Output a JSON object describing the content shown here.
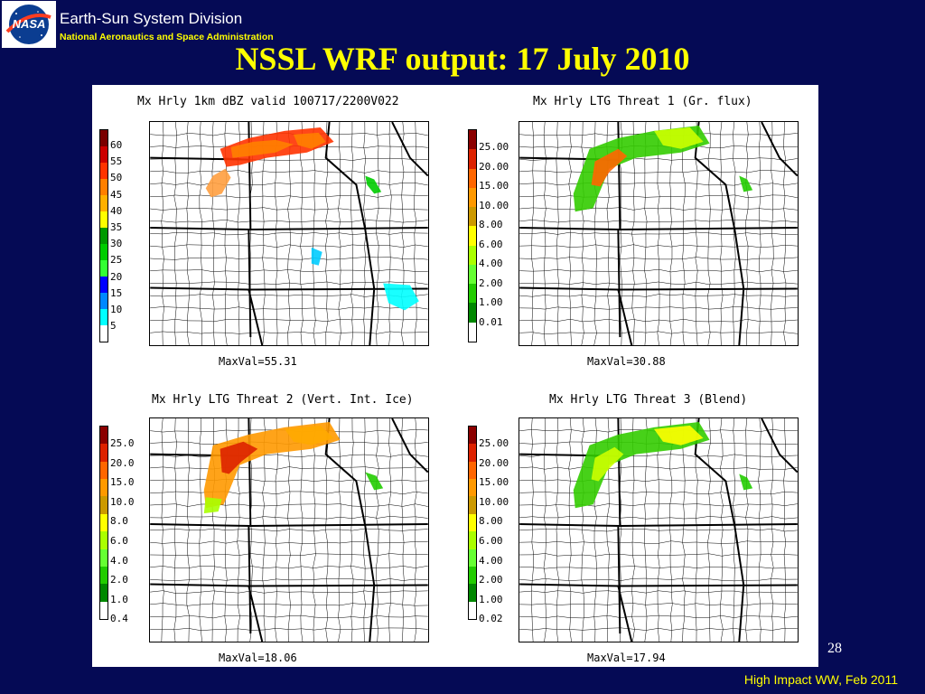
{
  "header": {
    "org_title": "Earth-Sun System Division",
    "org_subtitle": "National Aeronautics and Space Administration",
    "logo_text": "NASA"
  },
  "slide_title": "NSSL WRF output: 17 July 2010",
  "panels": [
    {
      "title": "Mx Hrly 1km dBZ valid 100717/2200V022",
      "maxval": "MaxVal=55.31",
      "colorbar_labels": [
        "60",
        "55",
        "50",
        "45",
        "40",
        "35",
        "30",
        "25",
        "20",
        "15",
        "10",
        "5"
      ],
      "colorbar_colors": [
        "#7a0000",
        "#cc0000",
        "#ff3300",
        "#ff7f00",
        "#ffb000",
        "#ffff00",
        "#009900",
        "#00cc00",
        "#33ff33",
        "#0000ff",
        "#0088ff",
        "#00ffff",
        "#ffffff"
      ]
    },
    {
      "title": "Mx Hrly LTG Threat 1 (Gr. flux)",
      "maxval": "MaxVal=30.88",
      "colorbar_labels": [
        "25.00",
        "20.00",
        "15.00",
        "10.00",
        "8.00",
        "6.00",
        "4.00",
        "2.00",
        "1.00",
        "0.01"
      ],
      "colorbar_colors": [
        "#8b0000",
        "#dd2200",
        "#ff6600",
        "#ff9900",
        "#cc9900",
        "#ffff00",
        "#aaff00",
        "#66ff33",
        "#22cc00",
        "#008800",
        "#ffffff"
      ]
    },
    {
      "title": "Mx Hrly LTG Threat 2 (Vert. Int. Ice)",
      "maxval": "MaxVal=18.06",
      "colorbar_labels": [
        "25.0",
        "20.0",
        "15.0",
        "10.0",
        "8.0",
        "6.0",
        "4.0",
        "2.0",
        "1.0",
        "0.4"
      ],
      "colorbar_colors": [
        "#8b0000",
        "#dd2200",
        "#ff6600",
        "#ff9900",
        "#cc9900",
        "#ffff00",
        "#aaff00",
        "#66ff33",
        "#22cc00",
        "#008800",
        "#ffffff"
      ]
    },
    {
      "title": "Mx Hrly LTG Threat 3 (Blend)",
      "maxval": "MaxVal=17.94",
      "colorbar_labels": [
        "25.00",
        "20.00",
        "15.00",
        "10.00",
        "8.00",
        "6.00",
        "4.00",
        "2.00",
        "1.00",
        "0.02"
      ],
      "colorbar_colors": [
        "#8b0000",
        "#dd2200",
        "#ff6600",
        "#ff9900",
        "#cc9900",
        "#ffff00",
        "#aaff00",
        "#66ff33",
        "#22cc00",
        "#008800",
        "#ffffff"
      ]
    }
  ],
  "page_number": "28",
  "footer": "High Impact WW, Feb 2011",
  "colors": {
    "background": "#050a55",
    "title": "#ffff00",
    "footer": "#ffff00"
  }
}
